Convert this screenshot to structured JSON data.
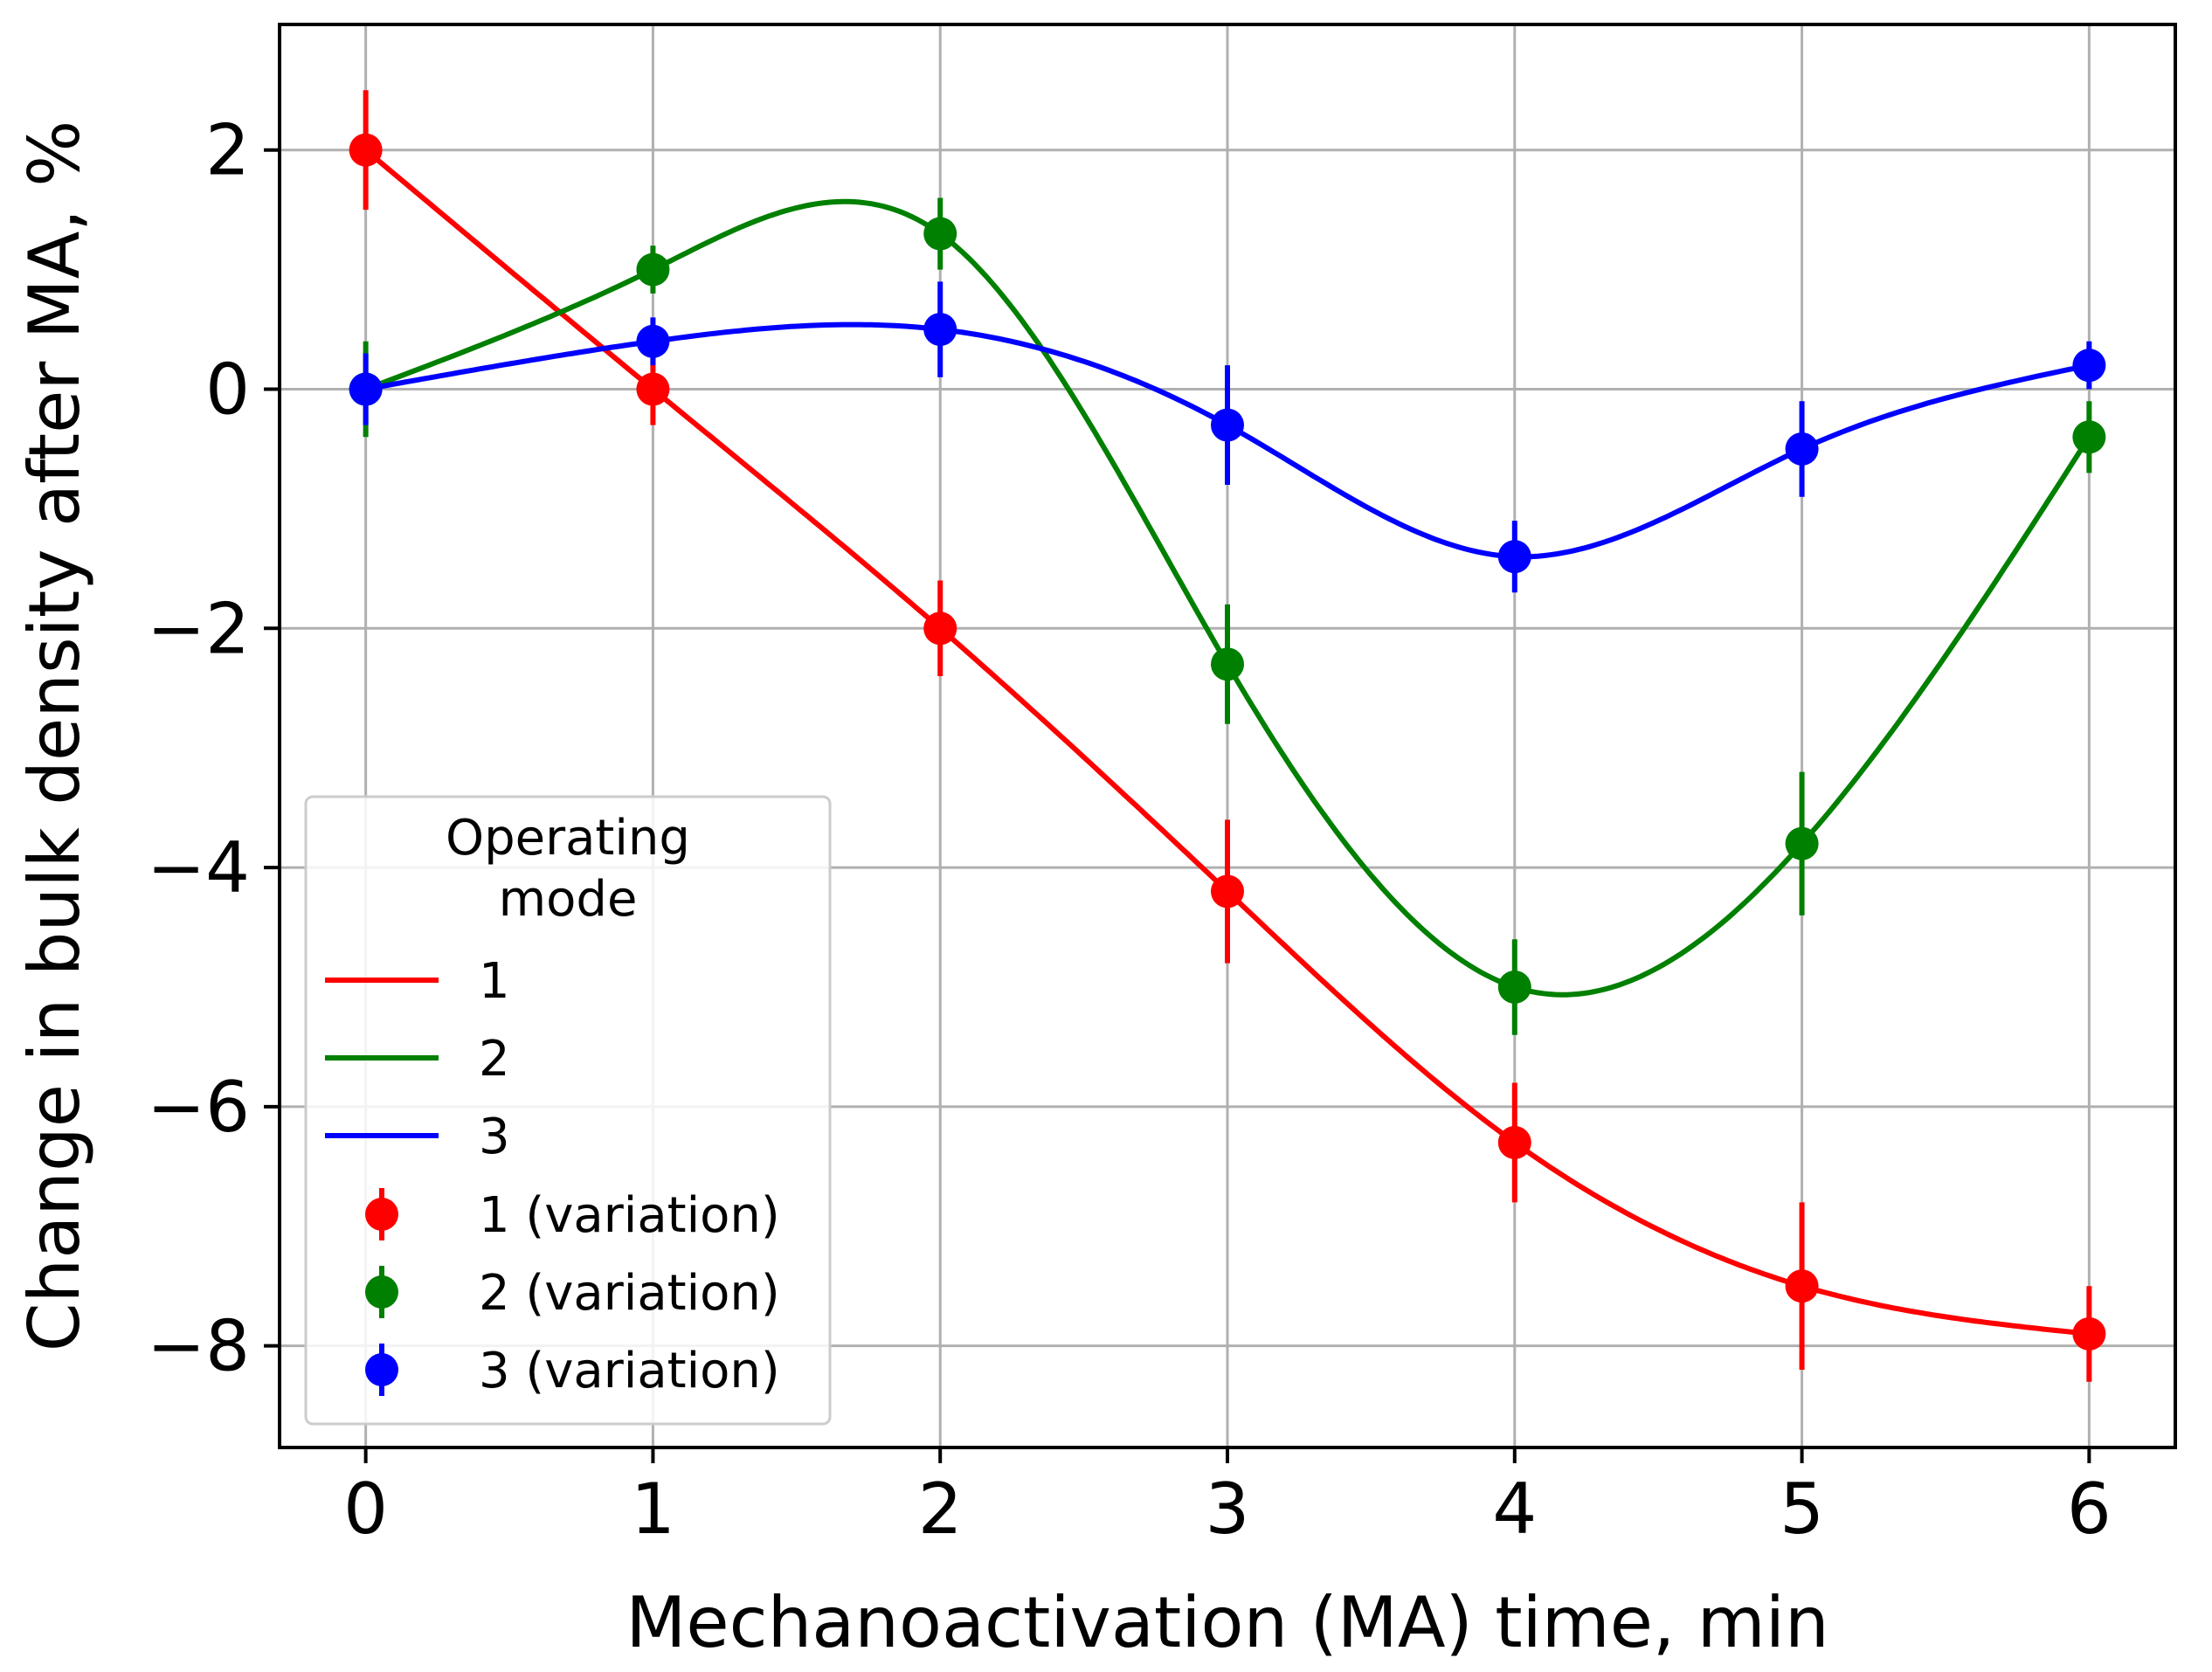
{
  "chart_data": {
    "type": "line",
    "title": "",
    "xlabel": "Mechanoactivation (MA) time, min",
    "ylabel": "Change in bulk density after MA, %",
    "xlim": [
      -0.3,
      6.3
    ],
    "ylim": [
      -8.85,
      3.05
    ],
    "xticks": [
      0,
      1,
      2,
      3,
      4,
      5,
      6
    ],
    "yticks": [
      2,
      0,
      -2,
      -4,
      -6,
      -8
    ],
    "grid": true,
    "legend": {
      "title_line1": "Operating",
      "title_line2": " mode",
      "placement": "lower-left"
    },
    "x": [
      0,
      1,
      2,
      3,
      4,
      5,
      6
    ],
    "series": [
      {
        "name": "1",
        "marker_label": "1 (variation)",
        "color": "#ff0000",
        "values": [
          2.0,
          0.0,
          -2.0,
          -4.2,
          -6.3,
          -7.5,
          -7.9
        ],
        "errors": [
          0.5,
          0.3,
          0.4,
          0.6,
          0.5,
          0.7,
          0.4
        ]
      },
      {
        "name": "2",
        "marker_label": "2 (variation)",
        "color": "#008000",
        "values": [
          0.0,
          1.0,
          1.3,
          -2.3,
          -5.0,
          -3.8,
          -0.4
        ],
        "errors": [
          0.4,
          0.2,
          0.3,
          0.5,
          0.4,
          0.6,
          0.3
        ]
      },
      {
        "name": "3",
        "marker_label": "3 (variation)",
        "color": "#0000ff",
        "values": [
          0.0,
          0.4,
          0.5,
          -0.3,
          -1.4,
          -0.5,
          0.2
        ],
        "errors": [
          0.3,
          0.2,
          0.4,
          0.5,
          0.3,
          0.4,
          0.2
        ]
      }
    ]
  }
}
